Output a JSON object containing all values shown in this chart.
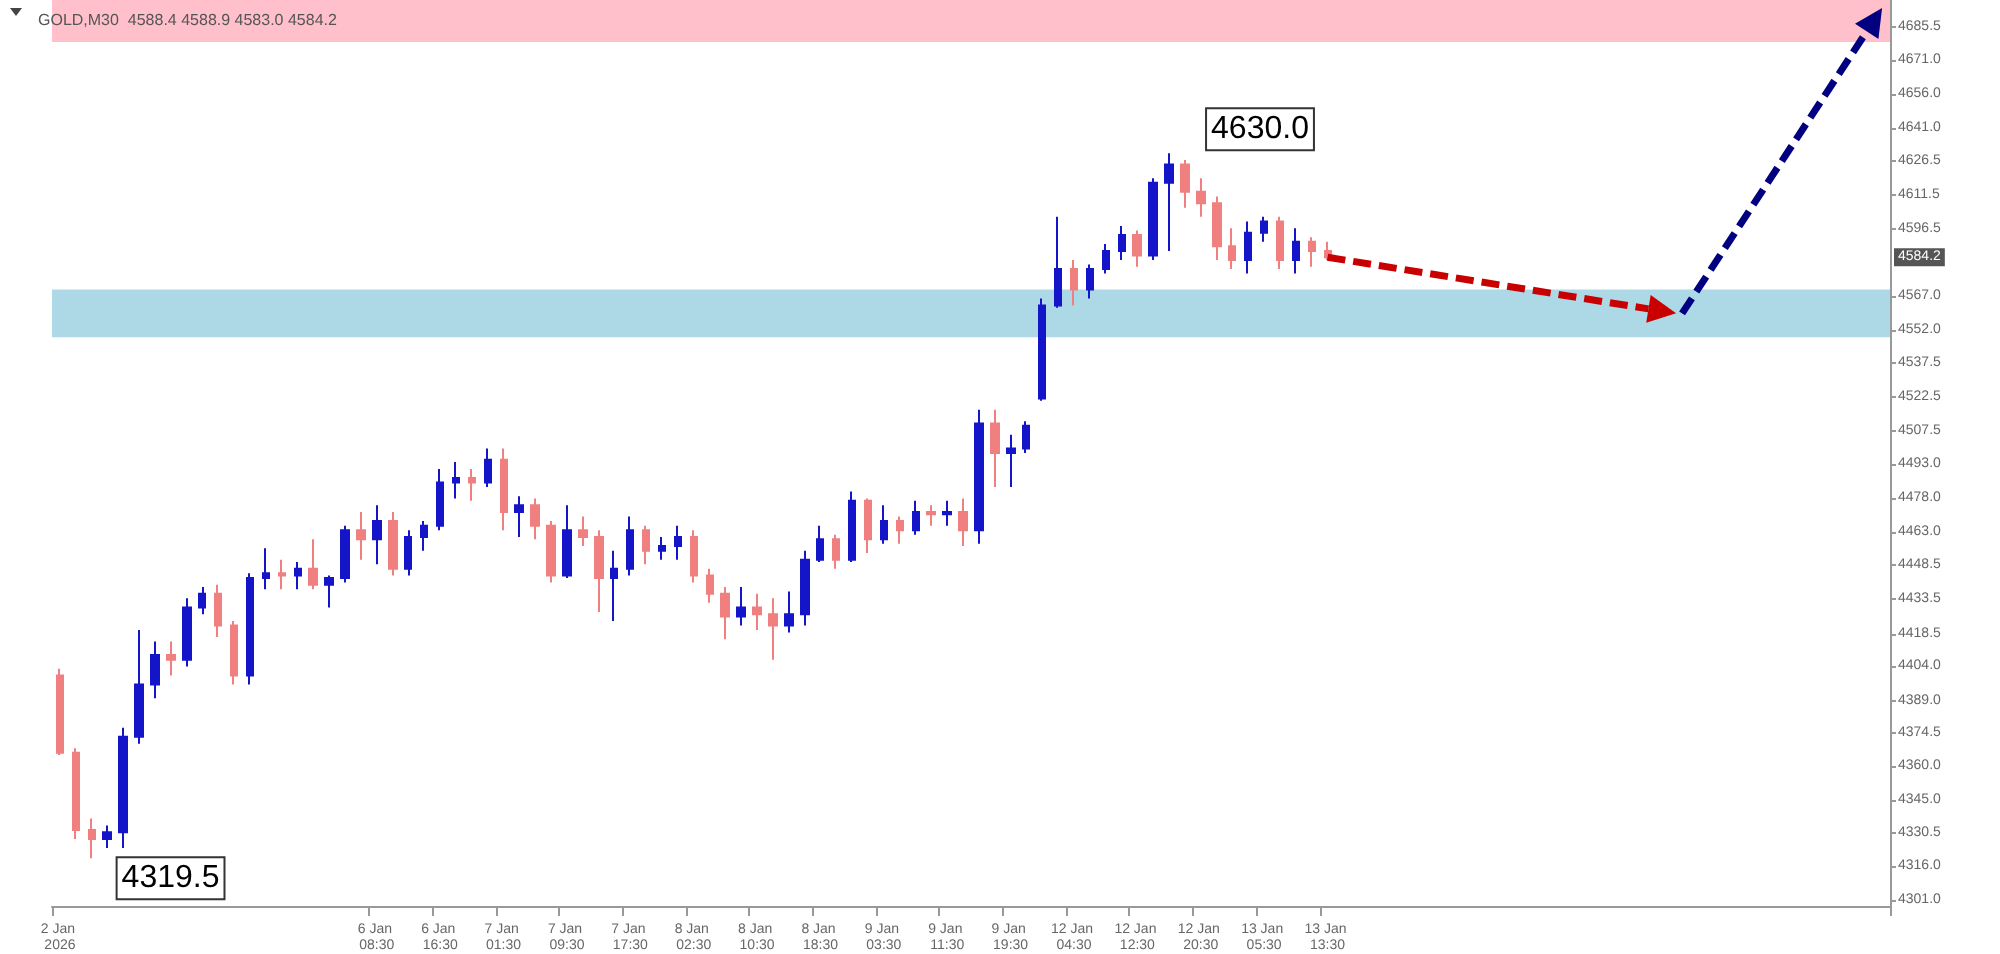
{
  "chart_data": {
    "type": "candlestick",
    "title": "GOLD,M30  4588.4 4588.9 4583.0 4584.2",
    "categories": [
      "2 Jan 2026",
      null,
      null,
      null,
      null,
      null,
      null,
      null,
      null,
      null,
      null,
      null,
      null,
      null,
      null,
      null,
      null,
      null,
      null,
      null,
      "6 Jan 08:30",
      null,
      null,
      null,
      "6 Jan 16:30",
      null,
      null,
      null,
      "7 Jan 01:30",
      null,
      null,
      null,
      "7 Jan 09:30",
      null,
      null,
      null,
      "7 Jan 17:30",
      null,
      null,
      null,
      "8 Jan 02:30",
      null,
      null,
      null,
      "8 Jan 10:30",
      null,
      null,
      null,
      "8 Jan 18:30",
      null,
      null,
      null,
      "9 Jan 03:30",
      null,
      null,
      null,
      "9 Jan 11:30",
      null,
      null,
      null,
      "9 Jan 19:30",
      null,
      null,
      null,
      "12 Jan 04:30",
      null,
      null,
      null,
      "12 Jan 12:30",
      null,
      null,
      null,
      "12 Jan 20:30",
      null,
      null,
      null,
      "13 Jan 05:30",
      null,
      null,
      null,
      "13 Jan 13:30",
      null,
      null,
      null,
      null,
      null,
      null,
      null,
      null,
      null,
      null,
      null,
      null,
      null,
      null,
      null,
      null,
      null,
      null,
      null,
      null,
      null,
      null,
      null,
      null,
      null,
      null,
      null,
      null,
      null,
      null,
      null,
      null,
      null,
      null,
      null
    ],
    "ohlc": [
      [
        4400,
        4403,
        4365,
        4366
      ],
      [
        4366,
        4368,
        4328,
        4332
      ],
      [
        4332,
        4337,
        4319.5,
        4328
      ],
      [
        4328,
        4334,
        4324,
        4331
      ],
      [
        4331,
        4377,
        4324,
        4373
      ],
      [
        4373,
        4420,
        4370,
        4396
      ],
      [
        4396,
        4415,
        4390,
        4409
      ],
      [
        4409,
        4415,
        4400,
        4407
      ],
      [
        4407,
        4434,
        4404,
        4430
      ],
      [
        4430,
        4439,
        4427,
        4436
      ],
      [
        4436,
        4440,
        4417,
        4422
      ],
      [
        4422,
        4424,
        4396,
        4400
      ],
      [
        4400,
        4445,
        4396,
        4443
      ],
      [
        4443,
        4456,
        4438,
        4445
      ],
      [
        4445,
        4451,
        4438,
        4444
      ],
      [
        4444,
        4450,
        4438,
        4447
      ],
      [
        4447,
        4460,
        4438,
        4440
      ],
      [
        4440,
        4444,
        4430,
        4443
      ],
      [
        4443,
        4466,
        4441,
        4464
      ],
      [
        4464,
        4472,
        4451,
        4460
      ],
      [
        4460,
        4475,
        4449,
        4468
      ],
      [
        4468,
        4472,
        4444,
        4447
      ],
      [
        4447,
        4464,
        4444,
        4461
      ],
      [
        4461,
        4468,
        4455,
        4466
      ],
      [
        4466,
        4491,
        4464,
        4485
      ],
      [
        4485,
        4494,
        4478,
        4487
      ],
      [
        4487,
        4491,
        4477,
        4485
      ],
      [
        4485,
        4500,
        4483,
        4495
      ],
      [
        4495,
        4500,
        4464,
        4472
      ],
      [
        4472,
        4479,
        4461,
        4475
      ],
      [
        4475,
        4478,
        4460,
        4466
      ],
      [
        4466,
        4468,
        4441,
        4444
      ],
      [
        4444,
        4475,
        4443,
        4464
      ],
      [
        4464,
        4470,
        4457,
        4461
      ],
      [
        4461,
        4464,
        4428,
        4443
      ],
      [
        4443,
        4455,
        4424,
        4447
      ],
      [
        4447,
        4470,
        4444,
        4464
      ],
      [
        4464,
        4466,
        4449,
        4455
      ],
      [
        4455,
        4461,
        4451,
        4457
      ],
      [
        4457,
        4466,
        4451,
        4461
      ],
      [
        4461,
        4464,
        4441,
        4444
      ],
      [
        4444,
        4447,
        4432,
        4436
      ],
      [
        4436,
        4439,
        4416,
        4426
      ],
      [
        4426,
        4439,
        4422,
        4430
      ],
      [
        4430,
        4436,
        4420,
        4427
      ],
      [
        4427,
        4434,
        4407,
        4422
      ],
      [
        4422,
        4437,
        4419,
        4427
      ],
      [
        4427,
        4455,
        4422,
        4451
      ],
      [
        4451,
        4466,
        4450,
        4460
      ],
      [
        4460,
        4462,
        4447,
        4451
      ],
      [
        4451,
        4481,
        4450,
        4477
      ],
      [
        4477,
        4478,
        4454,
        4460
      ],
      [
        4460,
        4475,
        4458,
        4468
      ],
      [
        4468,
        4470,
        4458,
        4464
      ],
      [
        4464,
        4477,
        4462,
        4472
      ],
      [
        4472,
        4475,
        4466,
        4471
      ],
      [
        4471,
        4477,
        4466,
        4472
      ],
      [
        4472,
        4478,
        4457,
        4464
      ],
      [
        4464,
        4517,
        4458,
        4511
      ],
      [
        4511,
        4517,
        4483,
        4498
      ],
      [
        4498,
        4506,
        4483,
        4500
      ],
      [
        4500,
        4512,
        4498,
        4510
      ],
      [
        4522,
        4566,
        4521,
        4563
      ],
      [
        4563,
        4602,
        4562,
        4579
      ],
      [
        4579,
        4583,
        4563,
        4570
      ],
      [
        4570,
        4581,
        4566,
        4579
      ],
      [
        4579,
        4590,
        4577,
        4587
      ],
      [
        4587,
        4598,
        4583,
        4594
      ],
      [
        4594,
        4596,
        4580,
        4585
      ],
      [
        4585,
        4619,
        4583,
        4617
      ],
      [
        4617,
        4630.0,
        4587,
        4625
      ],
      [
        4625,
        4627,
        4606,
        4613
      ],
      [
        4613,
        4619,
        4602,
        4608
      ],
      [
        4608,
        4611,
        4583,
        4589
      ],
      [
        4589,
        4597,
        4579,
        4583
      ],
      [
        4583,
        4600,
        4577,
        4595
      ],
      [
        4595,
        4602,
        4591,
        4600
      ],
      [
        4600,
        4602,
        4579,
        4583
      ],
      [
        4583,
        4597,
        4577,
        4591
      ],
      [
        4591,
        4593,
        4580,
        4587
      ],
      [
        4587,
        4591,
        4583,
        4584.2
      ],
      null,
      null,
      null,
      null,
      null,
      null,
      null,
      null,
      null,
      null,
      null,
      null,
      null,
      null,
      null,
      null,
      null,
      null,
      null,
      null,
      null,
      null,
      null,
      null,
      null,
      null,
      null,
      null,
      null,
      null,
      null,
      null,
      null,
      null,
      null
    ],
    "colors": [
      "#f08080",
      "#f08080",
      "#f08080",
      "#1414c8",
      "#1414c8",
      "#1414c8",
      "#1414c8",
      "#f08080",
      "#1414c8",
      "#1414c8",
      "#f08080",
      "#f08080",
      "#1414c8",
      "#1414c8",
      "#f08080",
      "#1414c8",
      "#f08080",
      "#1414c8",
      "#1414c8",
      "#f08080",
      "#1414c8",
      "#f08080",
      "#1414c8",
      "#1414c8",
      "#1414c8",
      "#1414c8",
      "#f08080",
      "#1414c8",
      "#f08080",
      "#1414c8",
      "#f08080",
      "#f08080",
      "#1414c8",
      "#f08080",
      "#f08080",
      "#1414c8",
      "#1414c8",
      "#f08080",
      "#1414c8",
      "#1414c8",
      "#f08080",
      "#f08080",
      "#f08080",
      "#1414c8",
      "#f08080",
      "#f08080",
      "#1414c8",
      "#1414c8",
      "#1414c8",
      "#f08080",
      "#1414c8",
      "#f08080",
      "#1414c8",
      "#f08080",
      "#1414c8",
      "#f08080",
      "#1414c8",
      "#f08080",
      "#1414c8",
      "#f08080",
      "#1414c8",
      "#1414c8",
      "#1414c8",
      "#1414c8",
      "#f08080",
      "#1414c8",
      "#1414c8",
      "#1414c8",
      "#f08080",
      "#1414c8",
      "#1414c8",
      "#f08080",
      "#f08080",
      "#f08080",
      "#f08080",
      "#1414c8",
      "#1414c8",
      "#f08080",
      "#1414c8",
      "#f08080",
      "#f08080",
      null,
      null,
      null,
      null,
      null,
      null,
      null,
      null,
      null,
      null,
      null,
      null,
      null,
      null,
      null,
      null,
      null,
      null,
      null,
      null,
      null,
      null,
      null,
      null,
      null,
      null,
      null,
      null,
      null,
      null,
      null,
      null,
      null,
      null,
      null
    ],
    "ylim": [
      4298.5,
      4697.5
    ],
    "yticks": [
      {
        "value": 4301.0,
        "label": "4301.0"
      },
      {
        "value": 4316.0,
        "label": "4316.0"
      },
      {
        "value": 4330.5,
        "label": "4330.5"
      },
      {
        "value": 4345.0,
        "label": "4345.0"
      },
      {
        "value": 4360.0,
        "label": "4360.0"
      },
      {
        "value": 4374.5,
        "label": "4374.5"
      },
      {
        "value": 4389.0,
        "label": "4389.0"
      },
      {
        "value": 4404.0,
        "label": "4404.0"
      },
      {
        "value": 4418.5,
        "label": "4418.5"
      },
      {
        "value": 4433.5,
        "label": "4433.5"
      },
      {
        "value": 4448.5,
        "label": "4448.5"
      },
      {
        "value": 4463.0,
        "label": "4463.0"
      },
      {
        "value": 4478.0,
        "label": "4478.0"
      },
      {
        "value": 4493.0,
        "label": "4493.0"
      },
      {
        "value": 4507.5,
        "label": "4507.5"
      },
      {
        "value": 4522.5,
        "label": "4522.5"
      },
      {
        "value": 4537.5,
        "label": "4537.5"
      },
      {
        "value": 4552.0,
        "label": "4552.0"
      },
      {
        "value": 4567.0,
        "label": "4567.0"
      },
      {
        "value": 4596.5,
        "label": "4596.5"
      },
      {
        "value": 4611.5,
        "label": "4611.5"
      },
      {
        "value": 4626.5,
        "label": "4626.5"
      },
      {
        "value": 4641.0,
        "label": "4641.0"
      },
      {
        "value": 4656.0,
        "label": "4656.0"
      },
      {
        "value": 4671.0,
        "label": "4671.0"
      },
      {
        "value": 4685.5,
        "label": "4685.5"
      }
    ],
    "bands": [
      {
        "axis": "y",
        "from": 4679,
        "to": 4697.5,
        "color": "#ffc0cb"
      },
      {
        "axis": "y",
        "from": 4549,
        "to": 4570,
        "color": "#add8e6"
      }
    ],
    "annotations": [
      "4630.0",
      "4319.5",
      "4584.2"
    ],
    "grid": false
  }
}
